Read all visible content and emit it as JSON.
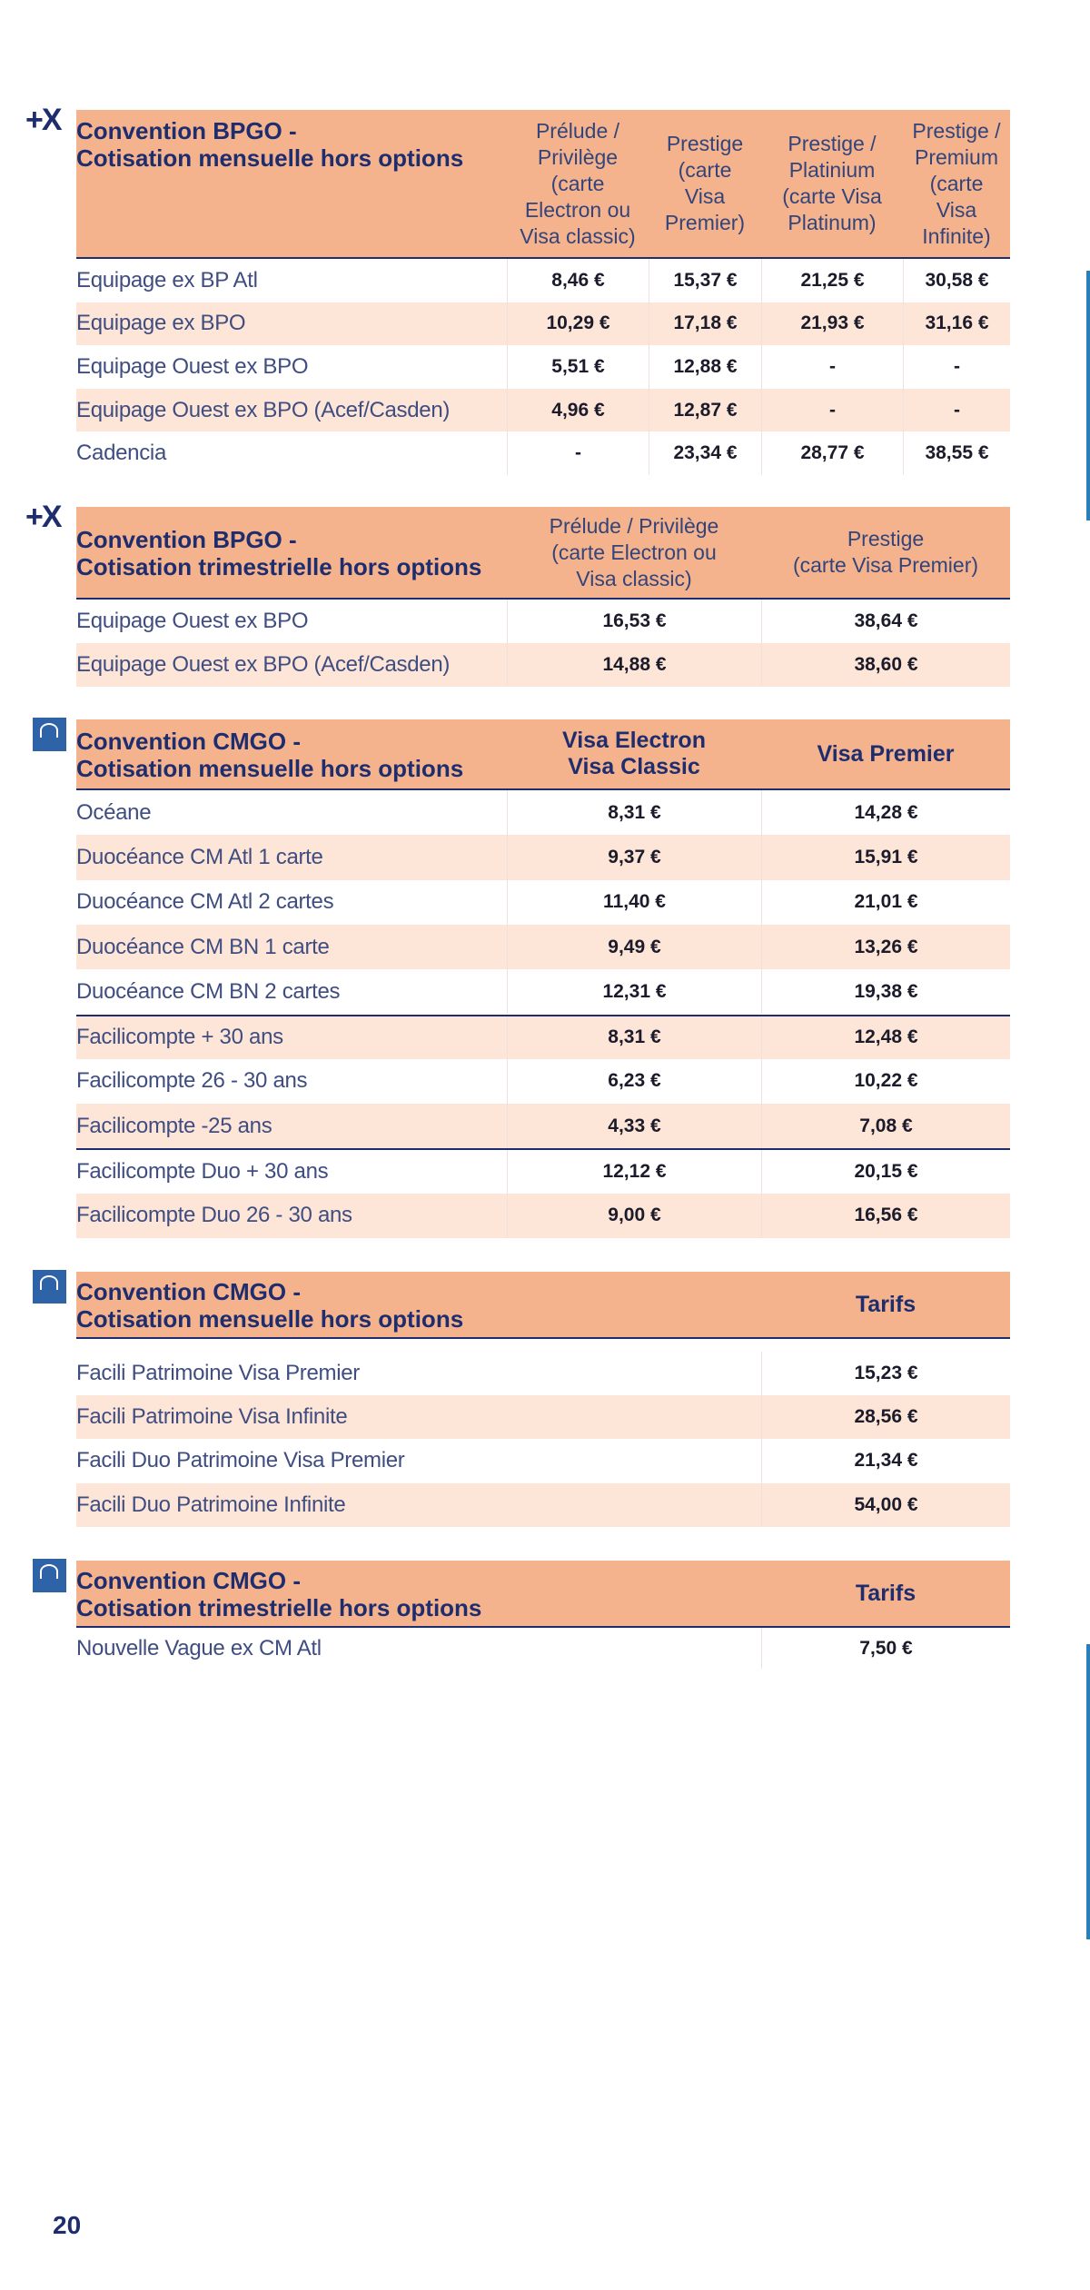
{
  "page_number": "20",
  "tables": [
    {
      "icon": "+X",
      "title": [
        "Convention BPGO -",
        "Cotisation mensuelle hors options"
      ],
      "columns": [
        [
          "Prélude /",
          "Privilège",
          "(carte",
          "Electron ou",
          "Visa classic)"
        ],
        [
          "Prestige",
          "(carte",
          "Visa",
          "Premier)"
        ],
        [
          "Prestige /",
          "Platinium",
          "(carte Visa",
          "Platinum)"
        ],
        [
          "Prestige /",
          "Premium",
          "(carte",
          "Visa",
          "Infinite)"
        ]
      ],
      "groups": [
        [
          {
            "name": "Equipage ex BP Atl",
            "values": [
              "8,46 €",
              "15,37 €",
              "21,25 €",
              "30,58 €"
            ]
          },
          {
            "name": "Equipage ex BPO",
            "values": [
              "10,29 €",
              "17,18 €",
              "21,93 €",
              "31,16 €"
            ]
          },
          {
            "name": "Equipage Ouest ex BPO",
            "values": [
              "5,51 €",
              "12,88 €",
              "-",
              "-"
            ]
          },
          {
            "name": "Equipage Ouest ex BPO (Acef/Casden)",
            "values": [
              "4,96 €",
              "12,87 €",
              "-",
              "-"
            ]
          },
          {
            "name": "Cadencia",
            "values": [
              "-",
              "23,34 €",
              "28,77 €",
              "38,55 €"
            ]
          }
        ]
      ]
    },
    {
      "icon": "+X",
      "title": [
        "Convention BPGO -",
        "Cotisation trimestrielle hors options"
      ],
      "columns": [
        [
          "Prélude / Privilège",
          "(carte Electron ou",
          "Visa classic)"
        ],
        [
          "Prestige",
          "(carte Visa Premier)"
        ]
      ],
      "groups": [
        [
          {
            "name": "Equipage Ouest ex BPO",
            "values": [
              "16,53 €",
              "38,64 €"
            ]
          },
          {
            "name": "Equipage Ouest ex BPO (Acef/Casden)",
            "values": [
              "14,88 €",
              "38,60 €"
            ]
          }
        ]
      ]
    },
    {
      "title": [
        "Convention CMGO -",
        "Cotisation mensuelle hors options"
      ],
      "columns": [
        [
          "Visa Electron",
          "Visa Classic"
        ],
        [
          "Visa Premier"
        ]
      ],
      "groups": [
        [
          {
            "name": "Océane",
            "values": [
              "8,31 €",
              "14,28 €"
            ]
          },
          {
            "name": "Duocéance CM Atl 1 carte",
            "values": [
              "9,37 €",
              "15,91 €"
            ]
          },
          {
            "name": "Duocéance CM Atl 2 cartes",
            "values": [
              "11,40 €",
              "21,01 €"
            ]
          },
          {
            "name": "Duocéance CM BN 1 carte",
            "values": [
              "9,49 €",
              "13,26 €"
            ]
          },
          {
            "name": "Duocéance CM BN 2 cartes",
            "values": [
              "12,31 €",
              "19,38 €"
            ]
          }
        ],
        [
          {
            "name": "Facilicompte + 30 ans",
            "values": [
              "8,31 €",
              "12,48 €"
            ]
          },
          {
            "name": "Facilicompte 26 - 30 ans",
            "values": [
              "6,23 €",
              "10,22 €"
            ]
          },
          {
            "name": "Facilicompte -25 ans",
            "values": [
              "4,33 €",
              "7,08 €"
            ]
          }
        ],
        [
          {
            "name": "Facilicompte Duo + 30 ans",
            "values": [
              "12,12 €",
              "20,15 €"
            ]
          },
          {
            "name": "Facilicompte Duo 26 - 30 ans",
            "values": [
              "9,00 €",
              "16,56 €"
            ]
          }
        ]
      ]
    },
    {
      "title": [
        "Convention CMGO -",
        "Cotisation mensuelle hors options"
      ],
      "columns": [
        [
          "Tarifs"
        ]
      ],
      "groups": [
        [
          {
            "name": "Facili Patrimoine Visa Premier",
            "values": [
              "15,23 €"
            ]
          },
          {
            "name": "Facili Patrimoine Visa Infinite",
            "values": [
              "28,56 €"
            ]
          },
          {
            "name": "Facili Duo Patrimoine Visa Premier",
            "values": [
              "21,34 €"
            ]
          },
          {
            "name": "Facili Duo Patrimoine Infinite",
            "values": [
              "54,00 €"
            ]
          }
        ]
      ]
    },
    {
      "title": [
        "Convention CMGO -",
        "Cotisation trimestrielle hors options"
      ],
      "columns": [
        [
          "Tarifs"
        ]
      ],
      "groups": [
        [
          {
            "name": "Nouvelle Vague ex CM Atl",
            "values": [
              "7,50 €"
            ]
          }
        ]
      ]
    }
  ]
}
